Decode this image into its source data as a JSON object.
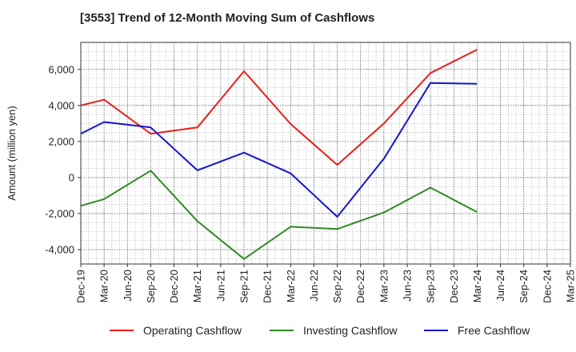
{
  "title": "[3553]  Trend of 12-Month Moving Sum of Cashflows",
  "chart_data": {
    "type": "line",
    "title": "[3553]  Trend of 12-Month Moving Sum of Cashflows",
    "xlabel": "",
    "ylabel": "Amount (million yen)",
    "ylim": [
      -4800,
      7500
    ],
    "yticks": [
      -4000,
      -2000,
      0,
      2000,
      4000,
      6000
    ],
    "ytick_labels": [
      "-4,000",
      "-2,000",
      "0",
      "2,000",
      "4,000",
      "6,000"
    ],
    "categories": [
      "Dec-19",
      "Mar-20",
      "Jun-20",
      "Sep-20",
      "Dec-20",
      "Mar-21",
      "Jun-21",
      "Sep-21",
      "Dec-21",
      "Mar-22",
      "Jun-22",
      "Sep-22",
      "Dec-22",
      "Mar-23",
      "Jun-23",
      "Sep-23",
      "Dec-23",
      "Mar-24",
      "Jun-24",
      "Sep-24",
      "Dec-24",
      "Mar-25"
    ],
    "grid": true,
    "legend_position": "bottom",
    "series": [
      {
        "name": "Operating Cashflow",
        "color": "#e8201c",
        "values": [
          4000,
          4320,
          null,
          2430,
          null,
          2780,
          null,
          5900,
          null,
          2970,
          null,
          700,
          null,
          3000,
          null,
          5800,
          null,
          7100,
          null,
          null,
          null,
          null
        ]
      },
      {
        "name": "Investing Cashflow",
        "color": "#2e8b22",
        "values": [
          -1570,
          -1200,
          null,
          380,
          null,
          -2420,
          null,
          -4520,
          null,
          -2730,
          null,
          -2860,
          null,
          -1940,
          null,
          -560,
          null,
          -1920,
          null,
          null,
          null,
          null
        ]
      },
      {
        "name": "Free Cashflow",
        "color": "#1414d2",
        "values": [
          2430,
          3080,
          null,
          2780,
          null,
          400,
          null,
          1380,
          null,
          230,
          null,
          -2180,
          null,
          1050,
          null,
          5250,
          null,
          5200,
          null,
          null,
          null,
          null
        ]
      }
    ]
  }
}
